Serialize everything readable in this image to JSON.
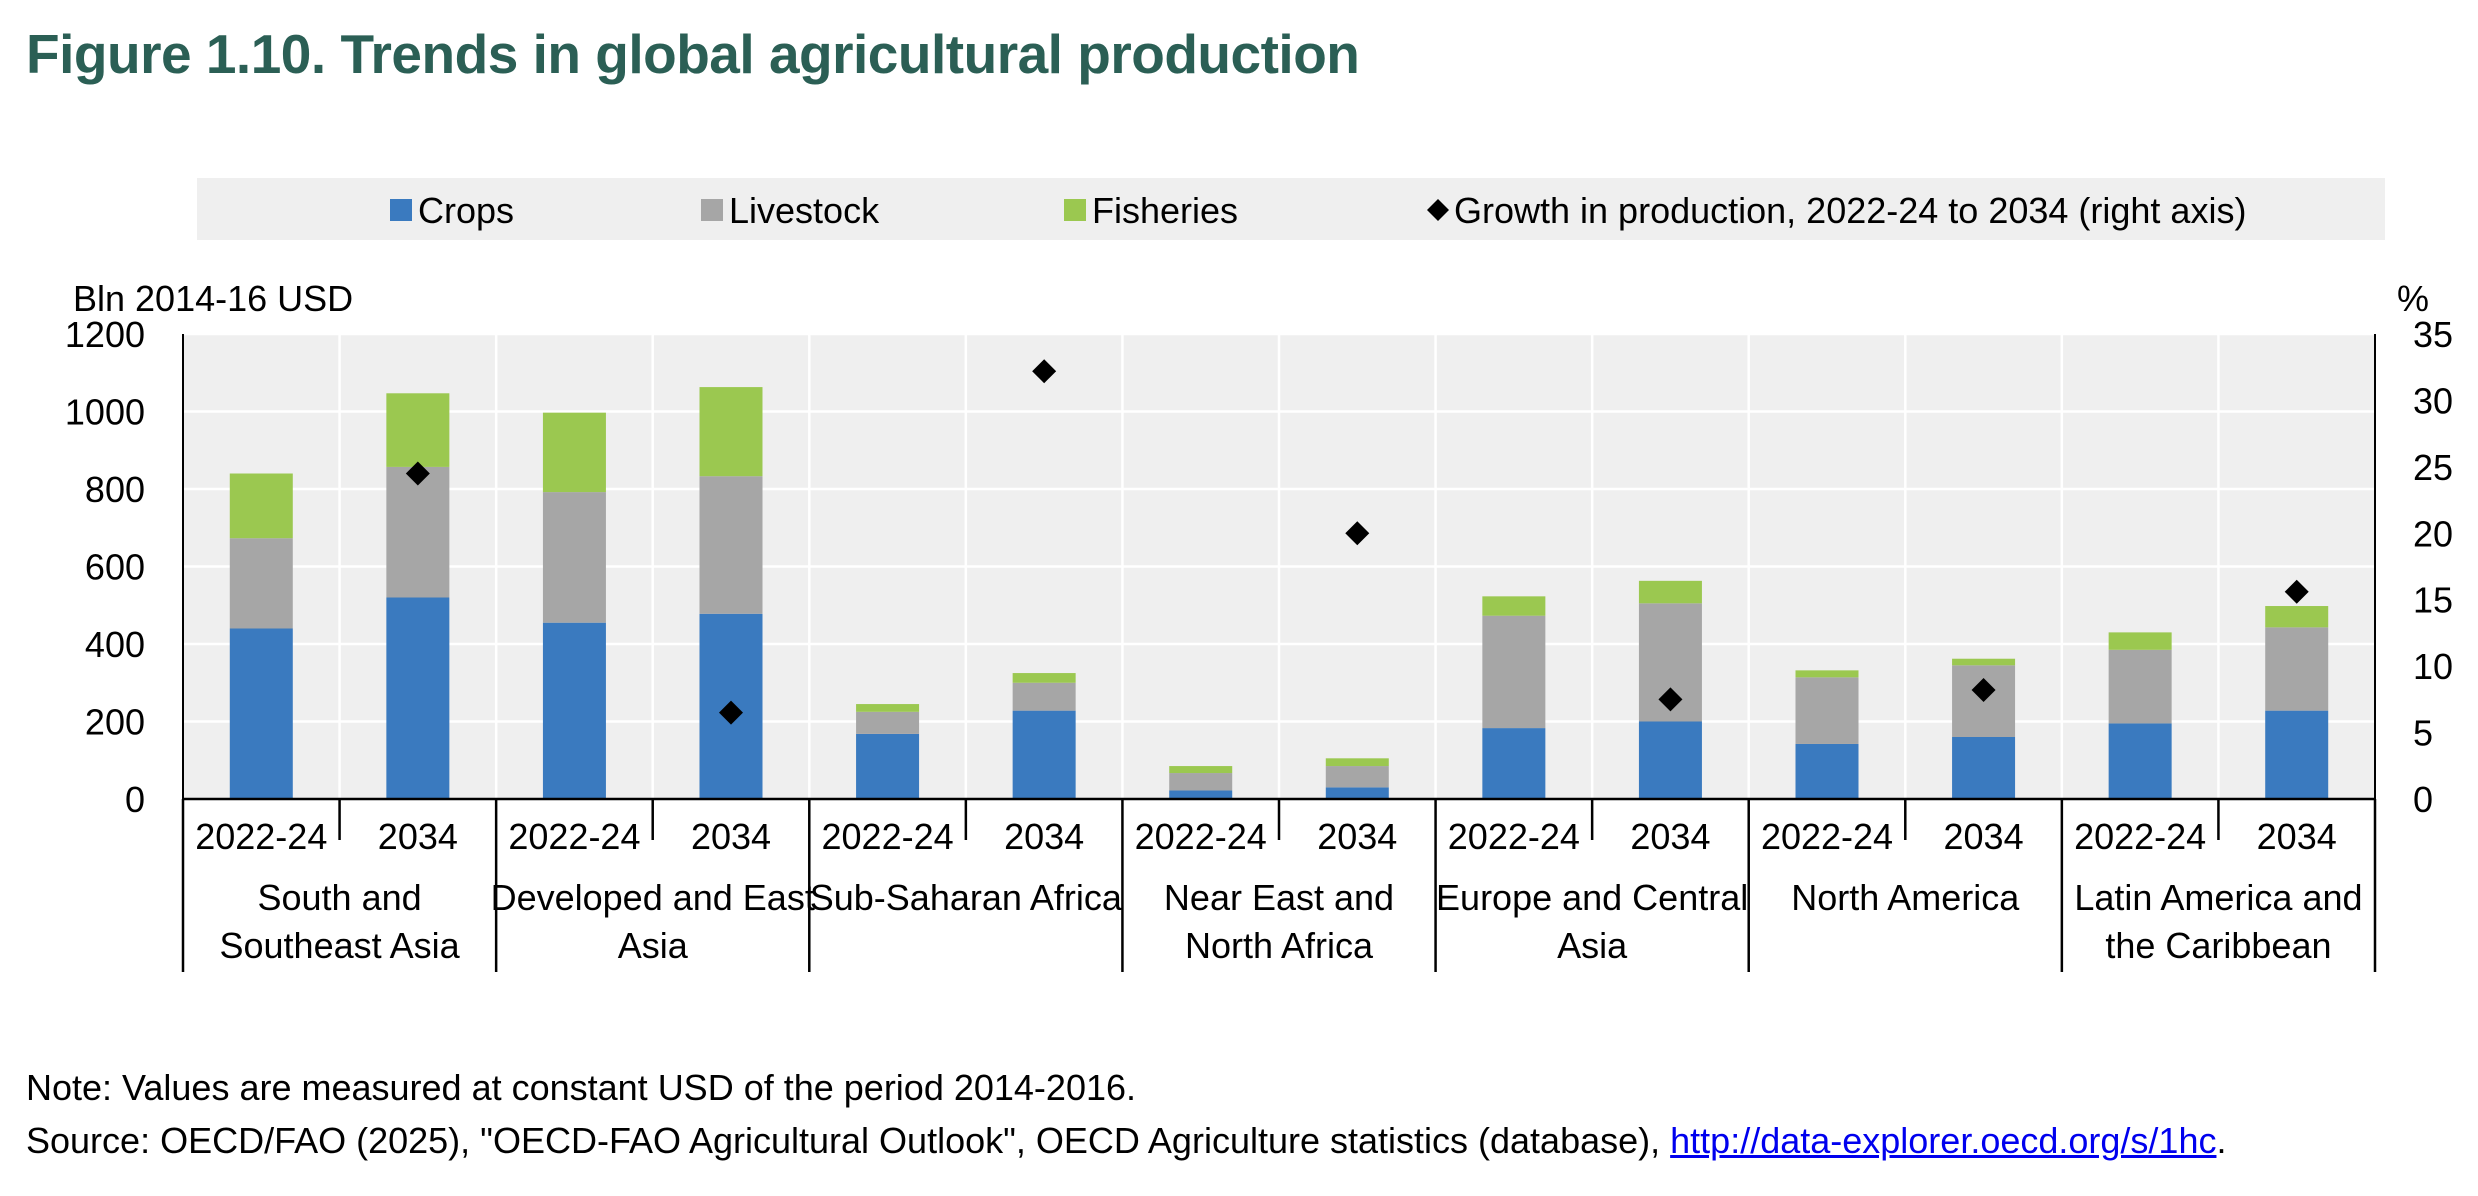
{
  "figure": {
    "title": "Figure 1.10. Trends in global agricultural production",
    "note": "Note: Values are measured at constant USD of the period 2014-2016.",
    "source_prefix": "Source: OECD/FAO (2025), \"OECD-FAO Agricultural Outlook\", OECD Agriculture statistics (database), ",
    "source_link": "http://data-explorer.oecd.org/s/1hc",
    "source_suffix": "."
  },
  "chart_data": {
    "type": "bar",
    "stacked": true,
    "title": "Figure 1.10. Trends in global agricultural production",
    "ylabel": "Bln 2014-16 USD",
    "y2label": "%",
    "ylim": [
      0,
      1200
    ],
    "y2lim": [
      0,
      35
    ],
    "yticks": [
      "0",
      "200",
      "400",
      "600",
      "800",
      "1000",
      "1200"
    ],
    "y2ticks": [
      "0",
      "5",
      "10",
      "15",
      "20",
      "25",
      "30",
      "35"
    ],
    "grid": true,
    "legend_position": "top",
    "groups": [
      {
        "label": "South and Southeast Asia",
        "lines": [
          "South and",
          "Southeast Asia"
        ]
      },
      {
        "label": "Developed and East Asia",
        "lines": [
          "Developed and East",
          "Asia"
        ]
      },
      {
        "label": "Sub-Saharan Africa",
        "lines": [
          "Sub-Saharan Africa"
        ]
      },
      {
        "label": "Near East and North Africa",
        "lines": [
          "Near East and",
          "North Africa"
        ]
      },
      {
        "label": "Europe and Central Asia",
        "lines": [
          "Europe and Central",
          "Asia"
        ]
      },
      {
        "label": "North America",
        "lines": [
          "North America"
        ]
      },
      {
        "label": "Latin America and the Caribbean",
        "lines": [
          "Latin America and",
          "the Caribbean"
        ]
      }
    ],
    "categories": [
      "2022-24",
      "2034",
      "2022-24",
      "2034",
      "2022-24",
      "2034",
      "2022-24",
      "2034",
      "2022-24",
      "2034",
      "2022-24",
      "2034",
      "2022-24",
      "2034"
    ],
    "series": [
      {
        "name": "Crops",
        "color": "#3a7abf",
        "values": [
          440,
          520,
          455,
          478,
          168,
          228,
          22,
          30,
          183,
          200,
          142,
          160,
          195,
          228
        ]
      },
      {
        "name": "Livestock",
        "color": "#a6a6a6",
        "values": [
          233,
          337,
          337,
          355,
          57,
          72,
          45,
          55,
          290,
          305,
          172,
          185,
          190,
          215
        ]
      },
      {
        "name": "Fisheries",
        "color": "#9bc850",
        "values": [
          167,
          190,
          205,
          230,
          20,
          25,
          18,
          20,
          50,
          58,
          18,
          17,
          45,
          55
        ]
      }
    ],
    "growth": {
      "name": "Growth in production, 2022-24 to 2034 (right axis)",
      "marker": "diamond",
      "color": "#000000",
      "values": [
        24.5,
        6.5,
        32.2,
        20.0,
        7.5,
        8.2,
        15.6
      ]
    }
  }
}
